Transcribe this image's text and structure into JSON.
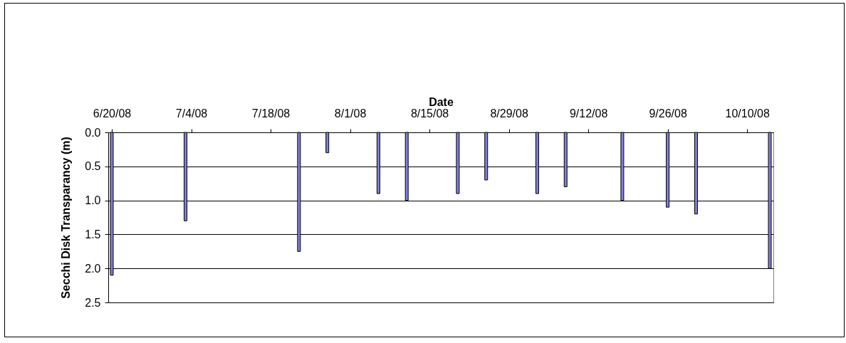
{
  "chart_data": {
    "type": "bar",
    "xlabel": "Date",
    "ylabel": "Secchi Disk Transparancy (m)",
    "x": [
      "2008-06-20",
      "2008-07-03",
      "2008-07-23",
      "2008-07-28",
      "2008-08-06",
      "2008-08-11",
      "2008-08-20",
      "2008-08-25",
      "2008-09-03",
      "2008-09-08",
      "2008-09-18",
      "2008-09-26",
      "2008-10-01",
      "2008-10-14"
    ],
    "values": [
      2.1,
      1.3,
      1.75,
      0.3,
      0.9,
      1.0,
      0.9,
      0.7,
      0.9,
      0.8,
      1.0,
      1.1,
      1.2,
      2.0
    ],
    "color": "#8080e0",
    "xlim": [
      "2008-06-20",
      "2008-10-14"
    ],
    "xticks": [
      {
        "value": "2008-06-20",
        "label": "6/20/08"
      },
      {
        "value": "2008-07-04",
        "label": "7/4/08"
      },
      {
        "value": "2008-07-18",
        "label": "7/18/08"
      },
      {
        "value": "2008-08-01",
        "label": "8/1/08"
      },
      {
        "value": "2008-08-15",
        "label": "8/15/08"
      },
      {
        "value": "2008-08-29",
        "label": "8/29/08"
      },
      {
        "value": "2008-09-12",
        "label": "9/12/08"
      },
      {
        "value": "2008-09-26",
        "label": "9/26/08"
      },
      {
        "value": "2008-10-10",
        "label": "10/10/08"
      }
    ],
    "ylim": [
      2.5,
      0
    ],
    "yticks": [
      {
        "value": 0,
        "label": "0.0"
      },
      {
        "value": 0.5,
        "label": "0.5"
      },
      {
        "value": 1,
        "label": "1.0"
      },
      {
        "value": 1.5,
        "label": "1.5"
      },
      {
        "value": 2,
        "label": "2.0"
      },
      {
        "value": 2.5,
        "label": "2.5"
      }
    ],
    "grid": "y"
  }
}
